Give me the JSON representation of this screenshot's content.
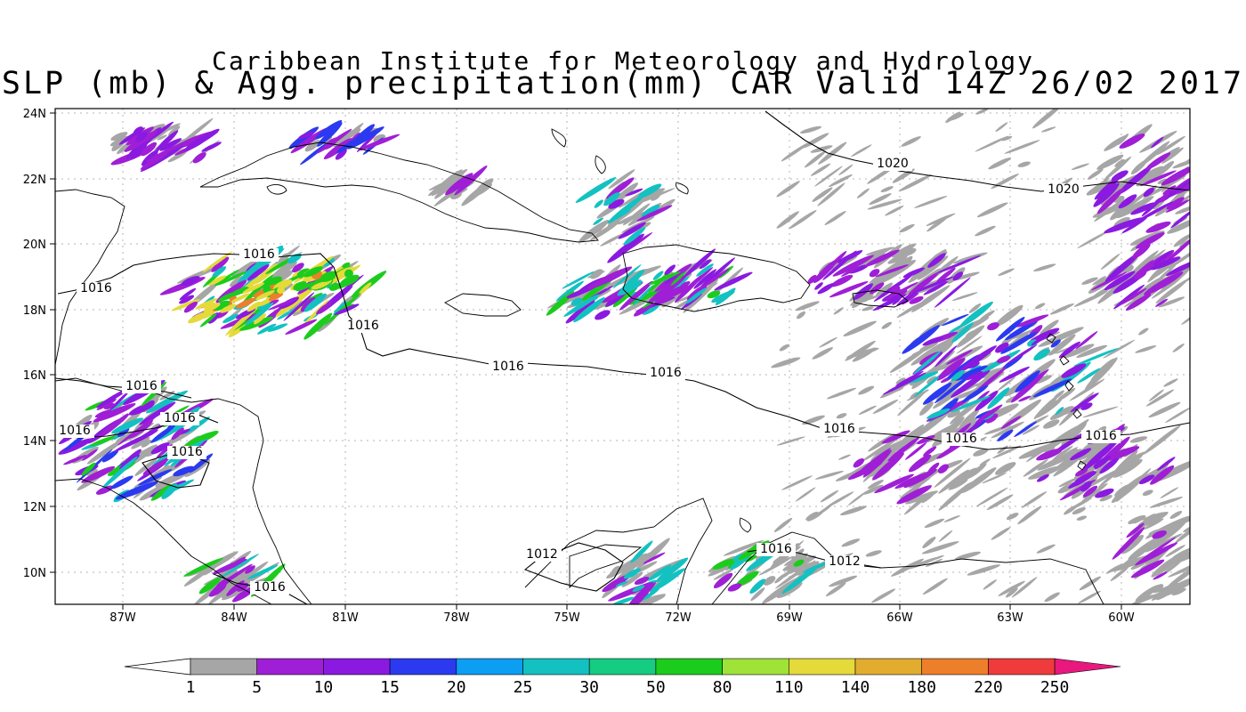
{
  "title": {
    "line1": "Caribbean Institute for Meteorology and Hydrology",
    "line2": "SLP (mb) & Agg. precipitation(mm) CAR Valid 14Z 26/02 2017"
  },
  "axes": {
    "lat_labels": [
      "24N",
      "22N",
      "20N",
      "18N",
      "16N",
      "14N",
      "12N",
      "10N"
    ],
    "lon_labels": [
      "87W",
      "84W",
      "81W",
      "78W",
      "75W",
      "72W",
      "69W",
      "66W",
      "63W",
      "60W"
    ]
  },
  "isobars": [
    {
      "label": "1020"
    },
    {
      "label": "1020"
    },
    {
      "label": "1016"
    },
    {
      "label": "1016"
    },
    {
      "label": "1016"
    },
    {
      "label": "1016"
    },
    {
      "label": "1016"
    },
    {
      "label": "1016"
    },
    {
      "label": "1016"
    },
    {
      "label": "1016"
    },
    {
      "label": "1016"
    },
    {
      "label": "1016"
    },
    {
      "label": "1016"
    },
    {
      "label": "1016"
    },
    {
      "label": "1016"
    },
    {
      "label": "1016"
    },
    {
      "label": "1012"
    },
    {
      "label": "1012"
    }
  ],
  "colorbar": {
    "labels": [
      "1",
      "5",
      "10",
      "15",
      "20",
      "25",
      "30",
      "50",
      "80",
      "110",
      "140",
      "180",
      "220",
      "250"
    ],
    "colors": [
      "#a6a6a6",
      "#9f1fd6",
      "#8a1ae0",
      "#2b3af0",
      "#0c9ef3",
      "#13c1c1",
      "#15cc82",
      "#1ccc1c",
      "#9fe238",
      "#e4da3a",
      "#e2ad2e",
      "#ee7f2a",
      "#ef3b3b"
    ],
    "over_color": "#e8187f"
  },
  "colors": {
    "grey": "#a6a6a6",
    "purple": "#9f1fd6",
    "violet": "#8a1ae0",
    "blue": "#2b3af0",
    "cyan": "#13c1c1",
    "green": "#1ccc1c",
    "yellow": "#e4da3a",
    "orange": "#ee7f2a"
  }
}
